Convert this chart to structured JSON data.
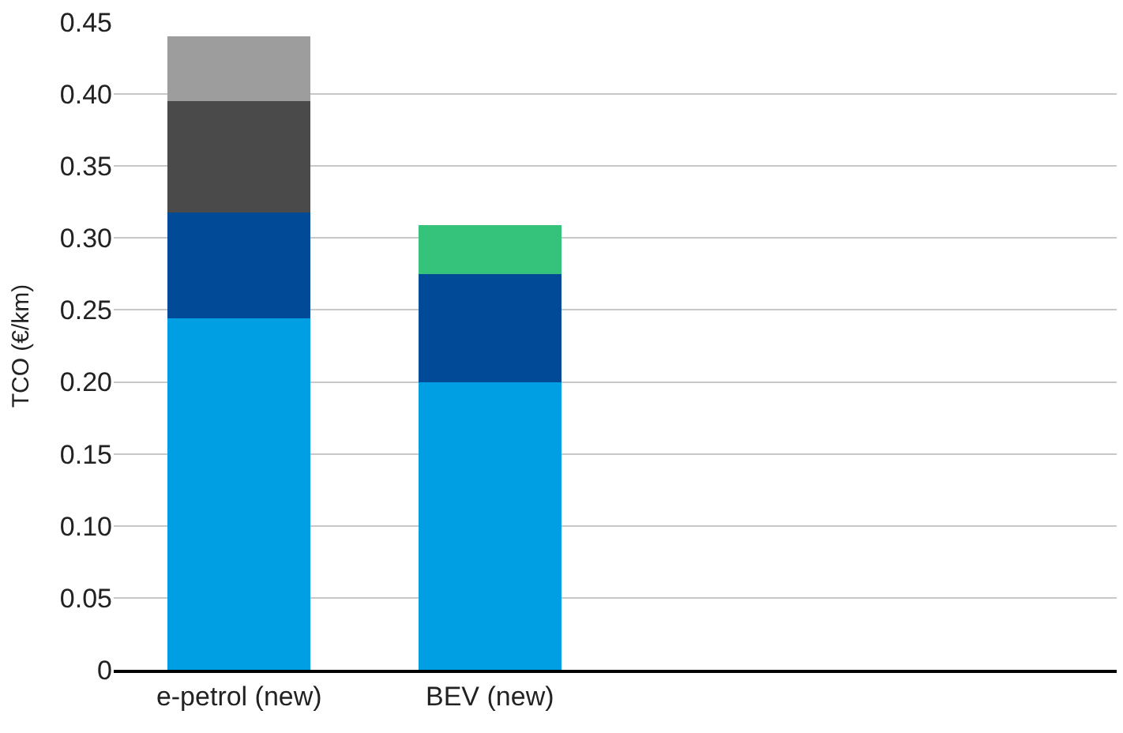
{
  "chart_data": {
    "type": "bar",
    "stacked": true,
    "ylabel": "TCO (€/km)",
    "categories": [
      "e-petrol (new)",
      "BEV (new)",
      null,
      null
    ],
    "series": [
      {
        "color": "#009fe3",
        "values": [
          0.244,
          0.2,
          null,
          null
        ]
      },
      {
        "color": "#004a98",
        "values": [
          0.074,
          0.075,
          null,
          null
        ]
      },
      {
        "color": "#4a4a4a",
        "values": [
          0.077,
          null,
          null,
          null
        ]
      },
      {
        "color": "#9d9d9d",
        "values": [
          0.045,
          null,
          null,
          null
        ]
      },
      {
        "color": "#35c37c",
        "values": [
          null,
          0.034,
          null,
          null
        ]
      }
    ],
    "ylim": [
      0,
      0.45
    ],
    "yticks": [
      {
        "value": 0,
        "label": "0"
      },
      {
        "value": 0.05,
        "label": "0.05"
      },
      {
        "value": 0.1,
        "label": "0.10"
      },
      {
        "value": 0.15,
        "label": "0.15"
      },
      {
        "value": 0.2,
        "label": "0.20"
      },
      {
        "value": 0.25,
        "label": "0.25"
      },
      {
        "value": 0.3,
        "label": "0.30"
      },
      {
        "value": 0.35,
        "label": "0.35"
      },
      {
        "value": 0.4,
        "label": "0.40"
      },
      {
        "value": 0.45,
        "label": "0.45"
      }
    ],
    "grid": "y"
  }
}
